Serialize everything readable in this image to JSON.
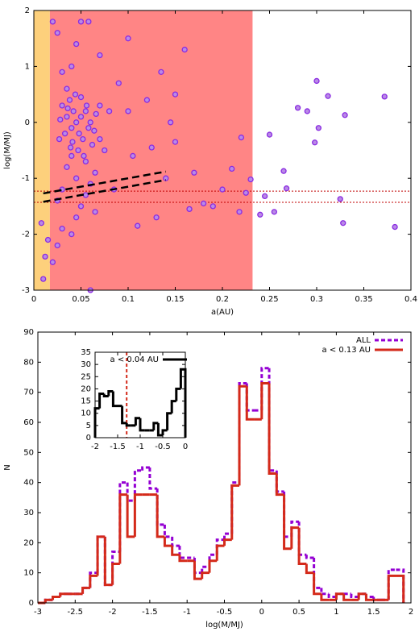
{
  "chart_data": [
    {
      "type": "scatter",
      "xlabel": "a(AU)",
      "ylabel": "log(M/MJ)",
      "xlim": [
        0,
        0.4
      ],
      "ylim": [
        -3,
        2
      ],
      "xticks": [
        0,
        0.05,
        0.1,
        0.15,
        0.2,
        0.25,
        0.3,
        0.35,
        0.4
      ],
      "yticks": [
        -3,
        -2,
        -1,
        0,
        1,
        2
      ],
      "color": "#8a2be2",
      "fill": "#b98ae6",
      "regions": [
        {
          "xlim": [
            0,
            0.017
          ],
          "color": "#fdd07c"
        },
        {
          "xlim": [
            0.017,
            0.232
          ],
          "color": "#ff8585"
        }
      ],
      "dashed_lines": [
        {
          "x": [
            0.01,
            0.14
          ],
          "y": [
            -1.27,
            -0.88
          ]
        },
        {
          "x": [
            0.01,
            0.14
          ],
          "y": [
            -1.42,
            -1.03
          ]
        }
      ],
      "hlines": [
        -1.23,
        -1.43
      ],
      "hline_color": "#c00000",
      "x": [
        0.25,
        0.265,
        0.268,
        0.245,
        0.255,
        0.24,
        0.28,
        0.3,
        0.312,
        0.298,
        0.302,
        0.33,
        0.29,
        0.328,
        0.325,
        0.372,
        0.383,
        0.22,
        0.21,
        0.23,
        0.225,
        0.218,
        0.2,
        0.18,
        0.16,
        0.15,
        0.15,
        0.17,
        0.19,
        0.165,
        0.14,
        0.145,
        0.135,
        0.12,
        0.125,
        0.13,
        0.11,
        0.1,
        0.1,
        0.105,
        0.09,
        0.085,
        0.08,
        0.075,
        0.07,
        0.065,
        0.06,
        0.058,
        0.05,
        0.045,
        0.04,
        0.035,
        0.03,
        0.025,
        0.02,
        0.015,
        0.012,
        0.01,
        0.008,
        0.02,
        0.025,
        0.03,
        0.04,
        0.045,
        0.05,
        0.055,
        0.06,
        0.035,
        0.04,
        0.03,
        0.045,
        0.025,
        0.055,
        0.065,
        0.07,
        0.03,
        0.035,
        0.04,
        0.042,
        0.045,
        0.048,
        0.05,
        0.052,
        0.055,
        0.058,
        0.06,
        0.038,
        0.044,
        0.05,
        0.056,
        0.062,
        0.047,
        0.033,
        0.028,
        0.041,
        0.053,
        0.036,
        0.066,
        0.07,
        0.039,
        0.027,
        0.064
      ],
      "y": [
        -0.22,
        -0.87,
        -1.18,
        -1.32,
        -1.6,
        -1.65,
        0.26,
        0.74,
        0.47,
        -0.36,
        -0.1,
        0.13,
        0.2,
        -1.8,
        -1.37,
        0.46,
        -1.87,
        -0.27,
        -0.83,
        -1.02,
        -1.26,
        -1.6,
        -1.2,
        -1.45,
        1.3,
        0.5,
        -0.35,
        -0.9,
        -1.5,
        -1.55,
        -1.0,
        0.0,
        0.9,
        0.4,
        -0.45,
        -1.7,
        -1.85,
        1.5,
        0.2,
        -0.6,
        0.7,
        -1.2,
        0.2,
        -0.5,
        1.2,
        -1.6,
        -3.0,
        1.8,
        1.8,
        1.4,
        1.0,
        0.6,
        0.9,
        1.6,
        1.8,
        -2.1,
        -2.4,
        -2.8,
        -1.8,
        -2.5,
        -2.2,
        -1.9,
        -2.0,
        -1.7,
        -1.5,
        -1.3,
        -1.1,
        -0.8,
        -0.6,
        -1.2,
        -1.0,
        -1.4,
        -0.7,
        -0.9,
        -0.3,
        0.3,
        0.1,
        -0.1,
        0.2,
        0.0,
        -0.2,
        0.1,
        -0.3,
        0.2,
        -0.1,
        0.0,
        0.4,
        0.5,
        0.45,
        0.3,
        -0.4,
        -0.5,
        -0.2,
        0.05,
        -0.35,
        -0.6,
        0.25,
        0.15,
        0.3,
        -0.45,
        -0.3,
        -0.15
      ]
    },
    {
      "type": "histogram",
      "xlabel": "log(M/MJ)",
      "ylabel": "N",
      "xlim": [
        -3,
        2
      ],
      "ylim": [
        0,
        90
      ],
      "xticks": [
        -3,
        -2.5,
        -2,
        -1.5,
        -1,
        -0.5,
        0,
        0.5,
        1,
        1.5,
        2
      ],
      "yticks": [
        0,
        10,
        20,
        30,
        40,
        50,
        60,
        70,
        80,
        90
      ],
      "bins": [
        -3,
        -2.9,
        -2.8,
        -2.7,
        -2.6,
        -2.5,
        -2.4,
        -2.3,
        -2.2,
        -2.1,
        -2,
        -1.9,
        -1.8,
        -1.7,
        -1.6,
        -1.5,
        -1.4,
        -1.3,
        -1.2,
        -1.1,
        -1,
        -0.9,
        -0.8,
        -0.7,
        -0.6,
        -0.5,
        -0.4,
        -0.3,
        -0.2,
        -0.1,
        0,
        0.1,
        0.2,
        0.3,
        0.4,
        0.5,
        0.6,
        0.7,
        0.8,
        0.9,
        1,
        1.1,
        1.2,
        1.3,
        1.4,
        1.5,
        1.6,
        1.7,
        1.8,
        1.9
      ],
      "series": [
        {
          "name": "ALL",
          "color": "#9400d3",
          "dashed": true,
          "values": [
            0,
            1,
            2,
            3,
            3,
            3,
            5,
            10,
            22,
            6,
            17,
            40,
            34,
            44,
            45,
            38,
            26,
            22,
            19,
            15,
            15,
            10,
            12,
            16,
            21,
            23,
            40,
            73,
            64,
            64,
            78,
            44,
            37,
            22,
            27,
            16,
            15,
            5,
            3,
            2,
            3,
            3,
            2,
            3,
            2,
            1,
            1,
            11,
            11
          ]
        },
        {
          "name": "a < 0.13 AU",
          "color": "#d42a1a",
          "dashed": false,
          "values": [
            0,
            1,
            2,
            3,
            3,
            3,
            5,
            9,
            22,
            6,
            13,
            36,
            22,
            36,
            36,
            36,
            22,
            19,
            16,
            14,
            14,
            8,
            10,
            14,
            19,
            21,
            39,
            72,
            61,
            61,
            73,
            43,
            36,
            18,
            25,
            13,
            10,
            3,
            1,
            1,
            3,
            1,
            1,
            3,
            1,
            1,
            1,
            9,
            9
          ]
        }
      ]
    },
    {
      "type": "histogram",
      "xlim": [
        -2,
        0
      ],
      "ylim": [
        0,
        35
      ],
      "xticks": [
        -2,
        -1.5,
        -1,
        -0.5,
        0
      ],
      "yticks": [
        0,
        5,
        10,
        15,
        20,
        25,
        30,
        35
      ],
      "vline": -1.3,
      "vline_color": "#d42a1a",
      "bins": [
        -2,
        -1.9,
        -1.8,
        -1.7,
        -1.6,
        -1.5,
        -1.4,
        -1.3,
        -1.2,
        -1.1,
        -1,
        -0.9,
        -0.8,
        -0.7,
        -0.6,
        -0.5,
        -0.4,
        -0.3,
        -0.2,
        -0.1,
        0
      ],
      "series": [
        {
          "name": "a < 0.04 AU",
          "color": "#000000",
          "dashed": false,
          "values": [
            12,
            18,
            17,
            19,
            13,
            13,
            6,
            5,
            5,
            8,
            3,
            3,
            3,
            6,
            1,
            3,
            10,
            15,
            20,
            28
          ]
        }
      ]
    }
  ]
}
